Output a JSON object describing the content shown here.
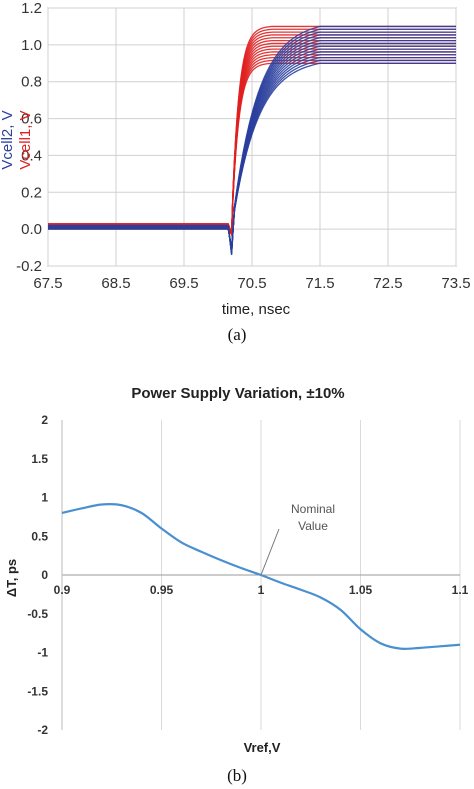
{
  "chart_data": [
    {
      "type": "line",
      "xlabel": "time, nsec",
      "ylabel_series": [
        {
          "label": "Vcell2, V",
          "color": "#2a3f9d"
        },
        {
          "label": "Vcell1, V",
          "color": "#e02020"
        }
      ],
      "xlim": [
        67.5,
        73.5
      ],
      "ylim": [
        -0.2,
        1.2
      ],
      "x_ticks": [
        "67.5",
        "68.5",
        "69.5",
        "70.5",
        "71.5",
        "72.5",
        "73.5"
      ],
      "y_ticks": [
        "-0.2",
        "0.0",
        "0.2",
        "0.4",
        "0.6",
        "0.8",
        "1.0",
        "1.2"
      ],
      "grid": true,
      "series": [
        {
          "color": "#2a3f9d",
          "low_level": [
            0.0,
            0.02
          ],
          "step_time": 70.2,
          "final_levels": [
            0.9,
            1.1
          ],
          "settle_time": 71.5
        },
        {
          "color": "#e02020",
          "low_level": [
            0.0,
            0.03
          ],
          "step_time": 70.2,
          "final_levels": [
            0.9,
            1.1
          ],
          "settle_time": 70.8
        }
      ],
      "caption": "(a)"
    },
    {
      "type": "line",
      "title": "Power Supply Variation, ±10%",
      "xlabel": "Vref,V",
      "ylabel": "ΔT, ps",
      "xlim": [
        0.9,
        1.1
      ],
      "ylim": [
        -2,
        2
      ],
      "x_ticks": [
        "0.9",
        "0.95",
        "1",
        "1.05",
        "1.1"
      ],
      "y_ticks": [
        "2",
        "1.5",
        "1",
        "0.5",
        "0",
        "-0.5",
        "-1",
        "-1.5",
        "-2"
      ],
      "grid": true,
      "line_color": "#4a90d0",
      "x": [
        0.9,
        0.91,
        0.92,
        0.93,
        0.94,
        0.95,
        0.96,
        0.97,
        0.98,
        0.99,
        1.0,
        1.01,
        1.02,
        1.03,
        1.04,
        1.05,
        1.06,
        1.07,
        1.08,
        1.09,
        1.1
      ],
      "y": [
        0.8,
        0.86,
        0.91,
        0.9,
        0.8,
        0.6,
        0.42,
        0.3,
        0.19,
        0.09,
        0.0,
        -0.1,
        -0.19,
        -0.29,
        -0.45,
        -0.7,
        -0.88,
        -0.95,
        -0.94,
        -0.92,
        -0.9
      ],
      "annotation": {
        "lines": [
          "Nominal",
          "Value"
        ],
        "x": 1.0,
        "y": 0.0
      },
      "caption": "(b)"
    }
  ]
}
